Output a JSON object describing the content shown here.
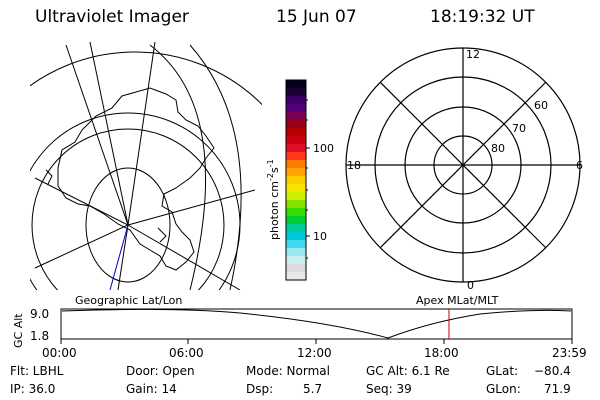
{
  "header": {
    "title": "Ultraviolet Imager",
    "date": "15 Jun 07",
    "time": "18:19:32 UT"
  },
  "left_panel": {
    "label": "Geographic Lat/Lon"
  },
  "colorbar": {
    "unit_label": "photon cm",
    "unit_exp1": "-2",
    "unit_s": "s",
    "unit_exp2": "-1",
    "ticks": [
      "100",
      "10"
    ],
    "colors": [
      "#000022",
      "#1a0033",
      "#3a0066",
      "#55007a",
      "#7a0055",
      "#99001a",
      "#b30000",
      "#cc0010",
      "#e0102a",
      "#ff3a1a",
      "#ff7a00",
      "#ffa400",
      "#ffcc00",
      "#f5e600",
      "#ccf000",
      "#88e000",
      "#33dd00",
      "#00cc33",
      "#00cc99",
      "#00c8d8",
      "#40d8ee",
      "#9ae8f2",
      "#c8eef0",
      "#dcdcdc",
      "#e8e8e8"
    ]
  },
  "right_panel": {
    "label": "Apex MLat/MLT",
    "mlt_labels": {
      "top": "12",
      "left": "18",
      "right": "6",
      "bottom": "0"
    },
    "lat_labels": [
      "60",
      "70",
      "80"
    ]
  },
  "timeline": {
    "ylabel": "GC Alt",
    "y_ticks": [
      "9.0",
      "1.8"
    ],
    "x_ticks": [
      "00:00",
      "06:00",
      "12:00",
      "18:00",
      "23:59"
    ],
    "marker_color": "#cc0000"
  },
  "footer": {
    "col1": [
      "Flt: LBHL",
      "IP: 36.0"
    ],
    "col2": [
      "Door: Open",
      "Gain: 14"
    ],
    "col3a": [
      "Mode: Normal",
      "Dsp:"
    ],
    "col3b": [
      "",
      "5.7"
    ],
    "col4a": [
      "GC Alt: 6.1 Re",
      "Seq: 39"
    ],
    "col5a": [
      "GLat:",
      "GLon:"
    ],
    "col5b": [
      "−80.4",
      "71.9"
    ]
  }
}
